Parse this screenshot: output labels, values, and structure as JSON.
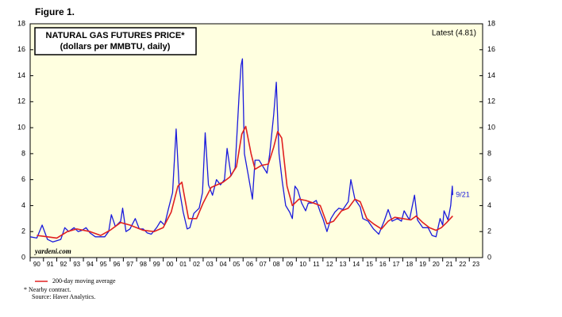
{
  "chart_data": {
    "type": "line",
    "figure_label": "Figure 1.",
    "title": "NATURAL GAS FUTURES PRICE*",
    "subtitle": "(dollars per MMBTU, daily)",
    "annotations": [
      "Latest (4.81)",
      "9/21"
    ],
    "watermark": "yardeni.com",
    "notes": [
      "*  Nearby contract.",
      "Source: Haver Analytics."
    ],
    "xlim": [
      1990,
      2024
    ],
    "xticks": [
      {
        "value": 1990,
        "label": "90"
      },
      {
        "value": 1991,
        "label": "91"
      },
      {
        "value": 1992,
        "label": "92"
      },
      {
        "value": 1993,
        "label": "93"
      },
      {
        "value": 1994,
        "label": "94"
      },
      {
        "value": 1995,
        "label": "95"
      },
      {
        "value": 1996,
        "label": "96"
      },
      {
        "value": 1997,
        "label": "97"
      },
      {
        "value": 1998,
        "label": "98"
      },
      {
        "value": 1999,
        "label": "99"
      },
      {
        "value": 2000,
        "label": "00"
      },
      {
        "value": 2001,
        "label": "01"
      },
      {
        "value": 2002,
        "label": "02"
      },
      {
        "value": 2003,
        "label": "03"
      },
      {
        "value": 2004,
        "label": "04"
      },
      {
        "value": 2005,
        "label": "05"
      },
      {
        "value": 2006,
        "label": "06"
      },
      {
        "value": 2007,
        "label": "07"
      },
      {
        "value": 2008,
        "label": "08"
      },
      {
        "value": 2009,
        "label": "09"
      },
      {
        "value": 2010,
        "label": "10"
      },
      {
        "value": 2011,
        "label": "11"
      },
      {
        "value": 2012,
        "label": "12"
      },
      {
        "value": 2013,
        "label": "13"
      },
      {
        "value": 2014,
        "label": "14"
      },
      {
        "value": 2015,
        "label": "15"
      },
      {
        "value": 2016,
        "label": "16"
      },
      {
        "value": 2017,
        "label": "17"
      },
      {
        "value": 2018,
        "label": "18"
      },
      {
        "value": 2019,
        "label": "19"
      },
      {
        "value": 2020,
        "label": "20"
      },
      {
        "value": 2021,
        "label": "21"
      },
      {
        "value": 2022,
        "label": "22"
      },
      {
        "value": 2023,
        "label": "23"
      }
    ],
    "ylim": [
      0,
      18
    ],
    "yticks": [
      0,
      2,
      4,
      6,
      8,
      10,
      12,
      14,
      16,
      18
    ],
    "series": [
      {
        "color": "#1a1adc",
        "x": [
          1990.0,
          1990.5,
          1990.9,
          1991.3,
          1991.7,
          1992.0,
          1992.3,
          1992.6,
          1992.9,
          1993.3,
          1993.6,
          1993.9,
          1994.2,
          1994.5,
          1994.9,
          1995.3,
          1995.6,
          1995.9,
          1996.1,
          1996.4,
          1996.8,
          1996.95,
          1997.2,
          1997.5,
          1997.9,
          1998.2,
          1998.5,
          1998.8,
          1999.1,
          1999.5,
          1999.8,
          2000.1,
          2000.4,
          2000.7,
          2000.97,
          2001.2,
          2001.5,
          2001.8,
          2002.0,
          2002.3,
          2002.7,
          2002.95,
          2003.15,
          2003.4,
          2003.7,
          2004.0,
          2004.3,
          2004.6,
          2004.8,
          2005.1,
          2005.4,
          2005.7,
          2005.85,
          2005.95,
          2006.1,
          2006.4,
          2006.7,
          2006.9,
          2007.2,
          2007.5,
          2007.8,
          2008.0,
          2008.3,
          2008.5,
          2008.7,
          2008.95,
          2009.2,
          2009.5,
          2009.7,
          2009.9,
          2010.1,
          2010.4,
          2010.7,
          2010.9,
          2011.2,
          2011.5,
          2011.8,
          2012.0,
          2012.3,
          2012.6,
          2012.9,
          2013.2,
          2013.5,
          2013.9,
          2014.1,
          2014.4,
          2014.8,
          2015.0,
          2015.4,
          2015.8,
          2016.0,
          2016.2,
          2016.6,
          2016.9,
          2017.2,
          2017.6,
          2017.9,
          2018.1,
          2018.5,
          2018.88,
          2019.1,
          2019.5,
          2019.9,
          2020.2,
          2020.5,
          2020.8,
          2021.0,
          2021.1,
          2021.4,
          2021.6,
          2021.72,
          2021.75
        ],
        "values": [
          1.6,
          1.5,
          2.5,
          1.4,
          1.2,
          1.3,
          1.4,
          2.3,
          2.0,
          2.3,
          2.0,
          2.1,
          2.3,
          1.9,
          1.6,
          1.6,
          1.6,
          2.0,
          3.3,
          2.4,
          2.8,
          3.8,
          2.0,
          2.2,
          3.0,
          2.2,
          2.2,
          1.9,
          1.8,
          2.3,
          2.8,
          2.5,
          3.8,
          5.0,
          9.9,
          5.3,
          3.5,
          2.2,
          2.3,
          3.4,
          3.8,
          5.0,
          9.6,
          5.6,
          4.8,
          6.0,
          5.6,
          6.0,
          8.4,
          6.3,
          6.9,
          12.5,
          14.8,
          15.3,
          8.0,
          6.3,
          4.5,
          7.5,
          7.5,
          7.0,
          6.5,
          8.0,
          11.0,
          13.5,
          8.0,
          5.8,
          4.0,
          3.5,
          3.0,
          5.5,
          5.2,
          4.2,
          3.6,
          4.2,
          4.2,
          4.4,
          3.5,
          3.0,
          2.0,
          3.0,
          3.5,
          3.8,
          3.7,
          4.3,
          6.0,
          4.5,
          3.9,
          3.0,
          2.8,
          2.2,
          2.0,
          1.8,
          2.8,
          3.7,
          2.8,
          3.0,
          2.8,
          3.6,
          2.9,
          4.8,
          2.9,
          2.3,
          2.3,
          1.7,
          1.6,
          3.0,
          2.5,
          3.6,
          2.9,
          4.0,
          5.5,
          4.81
        ]
      },
      {
        "name": "200-day moving average",
        "color": "#e02020",
        "x": [
          1990.5,
          1991.3,
          1992.0,
          1992.8,
          1993.5,
          1994.5,
          1995.3,
          1996.0,
          1996.8,
          1997.5,
          1998.5,
          1999.3,
          2000.0,
          2000.6,
          2001.1,
          2001.4,
          2001.9,
          2002.5,
          2003.0,
          2003.6,
          2004.5,
          2005.0,
          2005.5,
          2005.9,
          2006.2,
          2006.6,
          2006.9,
          2007.4,
          2007.9,
          2008.3,
          2008.6,
          2008.9,
          2009.3,
          2009.7,
          2010.2,
          2010.7,
          2011.3,
          2011.8,
          2012.3,
          2012.8,
          2013.4,
          2013.9,
          2014.4,
          2014.8,
          2015.3,
          2015.8,
          2016.4,
          2016.9,
          2017.4,
          2018.0,
          2018.6,
          2019.0,
          2019.5,
          2020.0,
          2020.5,
          2020.9,
          2021.3,
          2021.75
        ],
        "values": [
          1.7,
          1.6,
          1.5,
          2.0,
          2.2,
          2.0,
          1.7,
          2.1,
          2.7,
          2.5,
          2.1,
          2.0,
          2.3,
          3.5,
          5.5,
          5.8,
          3.0,
          3.0,
          4.2,
          5.4,
          5.8,
          6.2,
          7.0,
          9.5,
          10.1,
          8.0,
          6.8,
          7.1,
          7.2,
          8.5,
          9.7,
          9.2,
          5.5,
          4.0,
          4.5,
          4.4,
          4.2,
          4.0,
          2.6,
          2.8,
          3.6,
          3.8,
          4.5,
          4.3,
          3.0,
          2.6,
          2.2,
          2.8,
          3.1,
          3.0,
          2.9,
          3.2,
          2.7,
          2.3,
          2.1,
          2.3,
          2.7,
          3.2
        ]
      }
    ]
  }
}
